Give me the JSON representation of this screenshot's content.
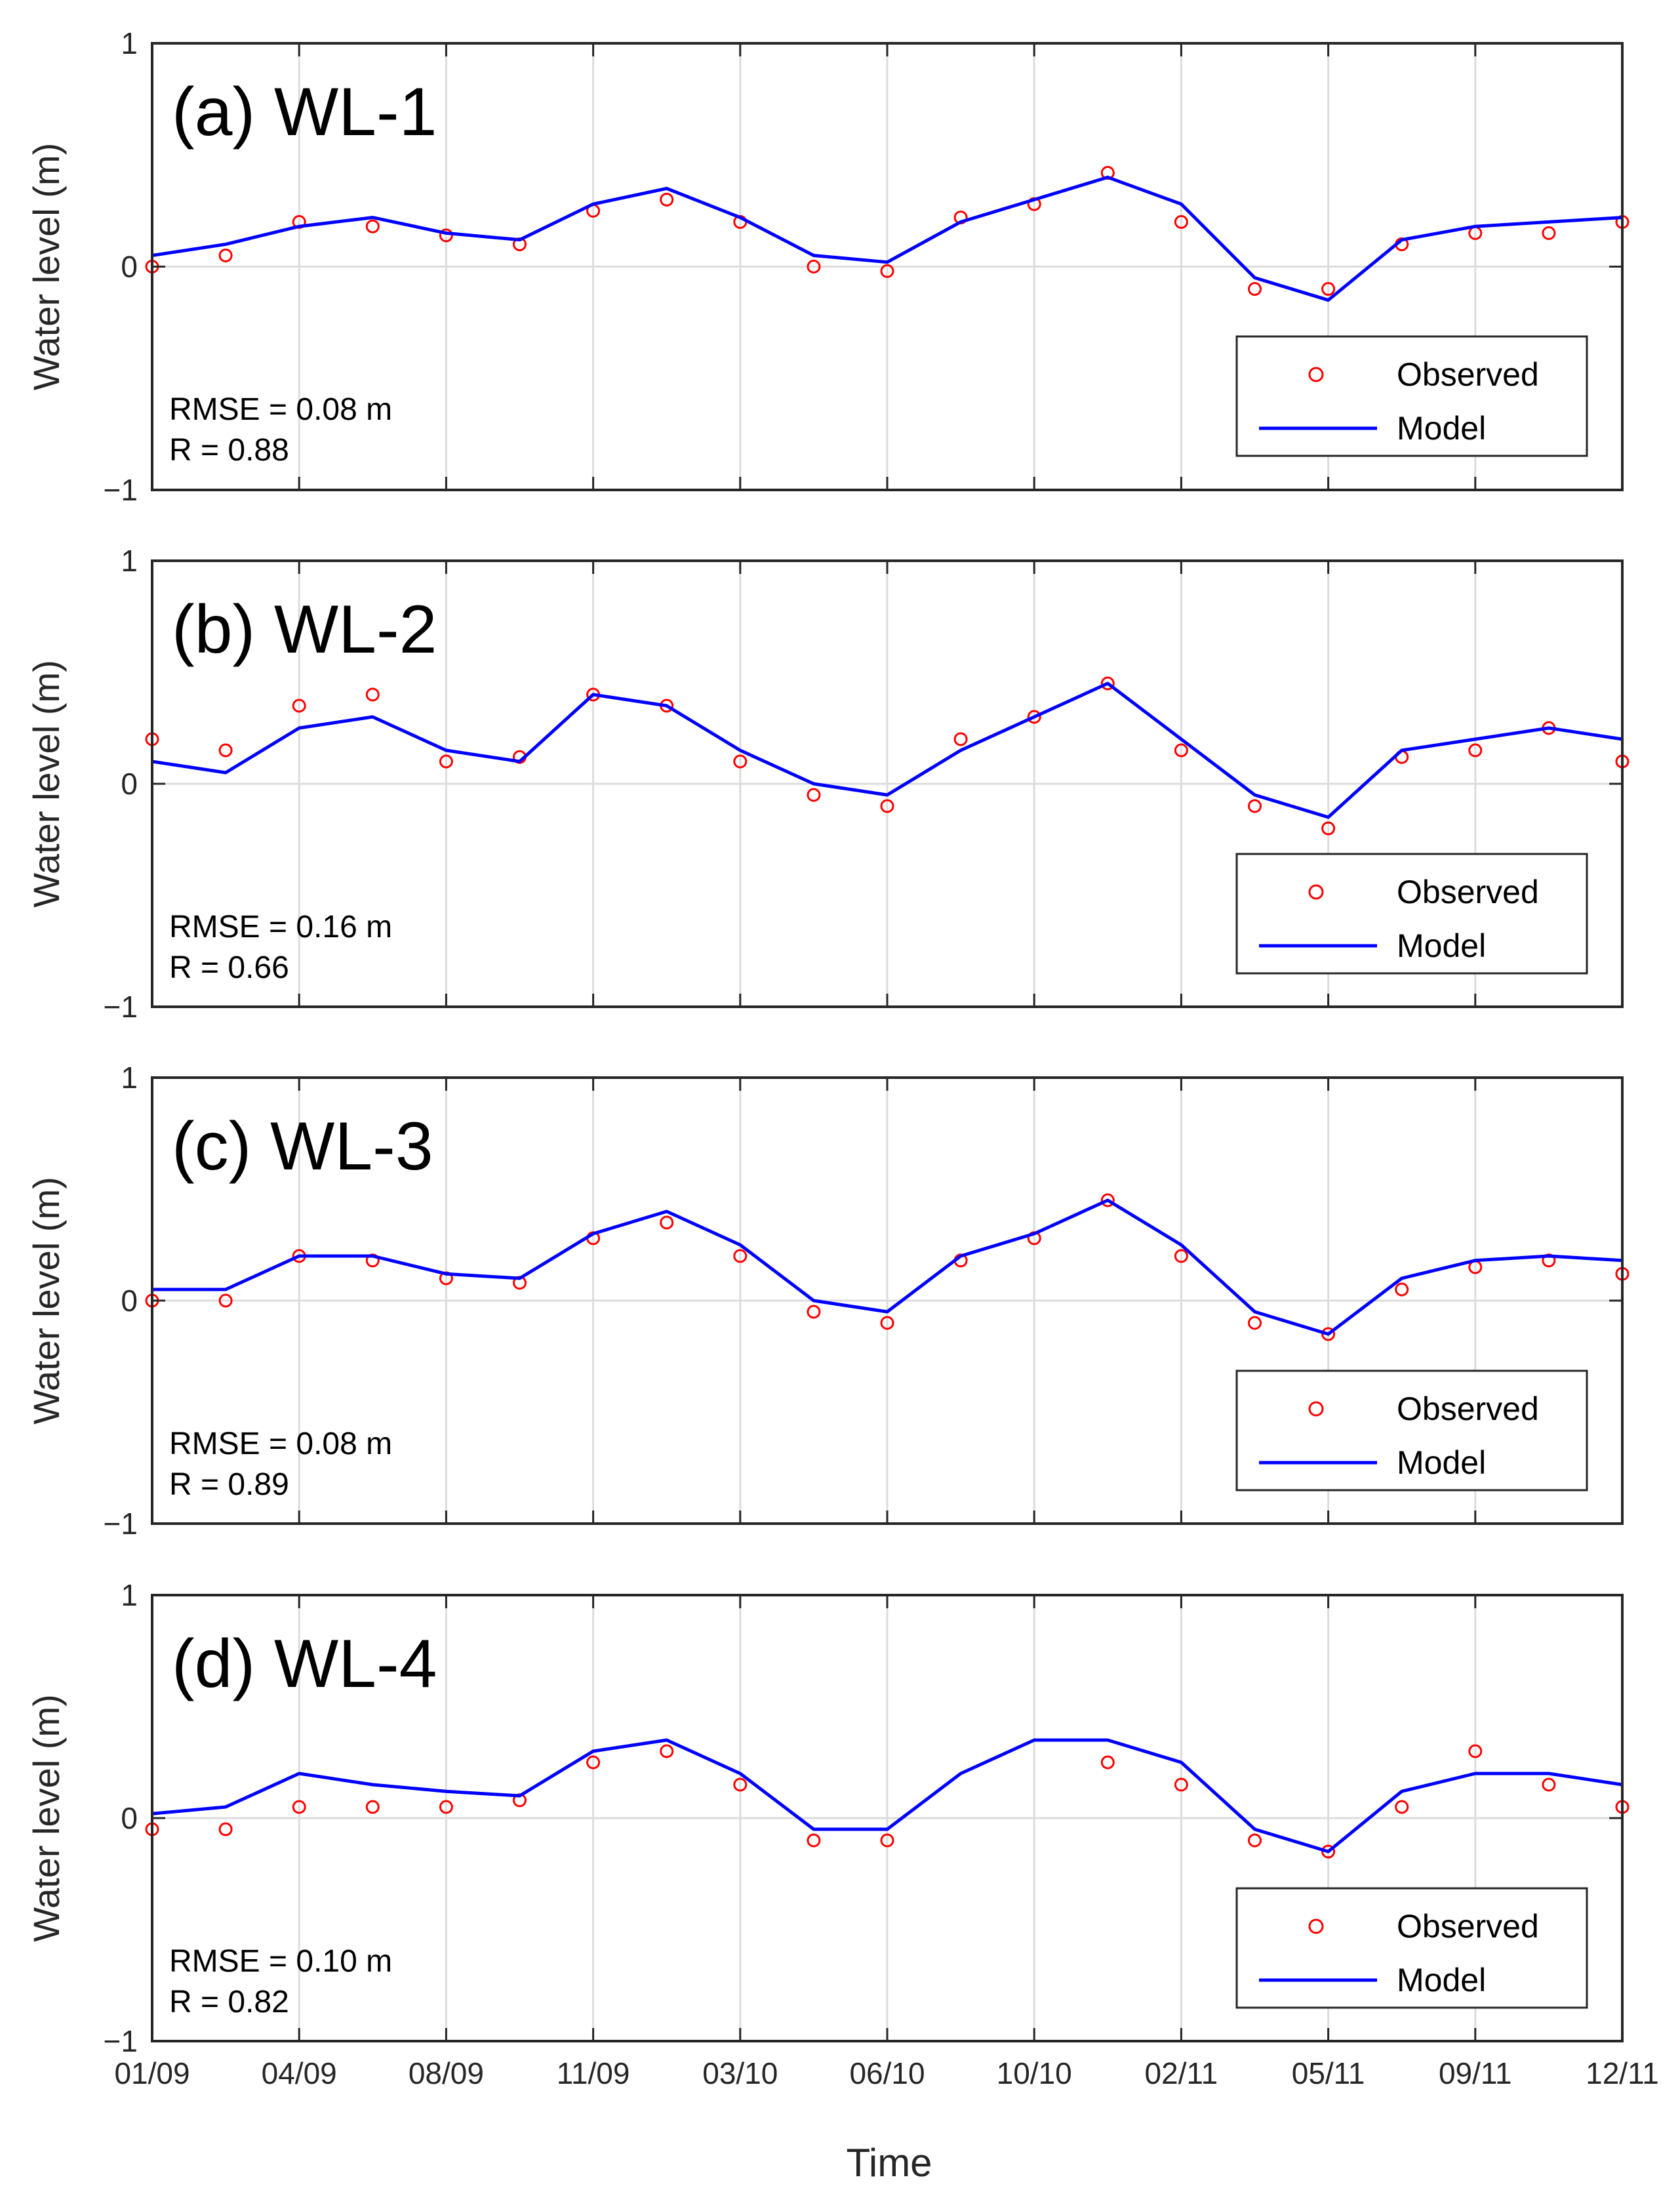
{
  "chart_data": [
    {
      "type": "line",
      "panel_title": "(a) WL-1",
      "ylabel": "Water level (m)",
      "xlabel": "",
      "ylim": [
        -1,
        1
      ],
      "y_ticks": [
        "1",
        "0",
        "−1"
      ],
      "x_tick_labels": [
        "01/09",
        "04/09",
        "08/09",
        "11/09",
        "03/10",
        "06/10",
        "10/10",
        "02/11",
        "05/11",
        "09/11",
        "12/11"
      ],
      "grid": true,
      "stats": [
        "RMSE = 0.08 m",
        "R = 0.88"
      ],
      "legend": {
        "position": "bottom-right",
        "entries": [
          "Observed",
          "Model"
        ]
      },
      "colors": {
        "observed": "#ff0000",
        "model": "#0000ff"
      },
      "x": [
        0,
        0.5,
        1,
        1.5,
        2,
        2.5,
        3,
        3.5,
        4,
        4.5,
        5,
        5.5,
        6,
        6.5,
        7,
        7.5,
        8,
        8.5,
        9,
        9.5,
        10
      ],
      "series": [
        {
          "name": "Model",
          "values": [
            0.05,
            0.1,
            0.18,
            0.22,
            0.15,
            0.12,
            0.28,
            0.35,
            0.22,
            0.05,
            0.02,
            0.2,
            0.3,
            0.4,
            0.28,
            -0.05,
            -0.15,
            0.12,
            0.18,
            0.2,
            0.22
          ]
        },
        {
          "name": "Observed",
          "values": [
            0.0,
            0.05,
            0.2,
            0.18,
            0.14,
            0.1,
            0.25,
            0.3,
            0.2,
            0.0,
            -0.02,
            0.22,
            0.28,
            0.42,
            0.2,
            -0.1,
            -0.1,
            0.1,
            0.15,
            0.15,
            0.2
          ]
        }
      ]
    },
    {
      "type": "line",
      "panel_title": "(b) WL-2",
      "ylabel": "Water level (m)",
      "xlabel": "",
      "ylim": [
        -1,
        1
      ],
      "y_ticks": [
        "1",
        "0",
        "−1"
      ],
      "x_tick_labels": [
        "01/09",
        "04/09",
        "08/09",
        "11/09",
        "03/10",
        "06/10",
        "10/10",
        "02/11",
        "05/11",
        "09/11",
        "12/11"
      ],
      "grid": true,
      "stats": [
        "RMSE = 0.16 m",
        "R = 0.66"
      ],
      "legend": {
        "position": "bottom-right",
        "entries": [
          "Observed",
          "Model"
        ]
      },
      "colors": {
        "observed": "#ff0000",
        "model": "#0000ff"
      },
      "x": [
        0,
        0.5,
        1,
        1.5,
        2,
        2.5,
        3,
        3.5,
        4,
        4.5,
        5,
        5.5,
        6,
        6.5,
        7,
        7.5,
        8,
        8.5,
        9,
        9.5,
        10
      ],
      "series": [
        {
          "name": "Model",
          "values": [
            0.1,
            0.05,
            0.25,
            0.3,
            0.15,
            0.1,
            0.4,
            0.35,
            0.15,
            0.0,
            -0.05,
            0.15,
            0.3,
            0.45,
            0.2,
            -0.05,
            -0.15,
            0.15,
            0.2,
            0.25,
            0.2
          ]
        },
        {
          "name": "Observed",
          "values": [
            0.2,
            0.15,
            0.35,
            0.4,
            0.1,
            0.12,
            0.4,
            0.35,
            0.1,
            -0.05,
            -0.1,
            0.2,
            0.3,
            0.45,
            0.15,
            -0.1,
            -0.2,
            0.12,
            0.15,
            0.25,
            0.1
          ]
        }
      ]
    },
    {
      "type": "line",
      "panel_title": "(c) WL-3",
      "ylabel": "Water level (m)",
      "xlabel": "",
      "ylim": [
        -1,
        1
      ],
      "y_ticks": [
        "1",
        "0",
        "−1"
      ],
      "x_tick_labels": [
        "01/09",
        "04/09",
        "08/09",
        "11/09",
        "03/10",
        "06/10",
        "10/10",
        "02/11",
        "05/11",
        "09/11",
        "12/11"
      ],
      "grid": true,
      "stats": [
        "RMSE = 0.08 m",
        "R = 0.89"
      ],
      "legend": {
        "position": "bottom-right",
        "entries": [
          "Observed",
          "Model"
        ]
      },
      "colors": {
        "observed": "#ff0000",
        "model": "#0000ff"
      },
      "x": [
        0,
        0.5,
        1,
        1.5,
        2,
        2.5,
        3,
        3.5,
        4,
        4.5,
        5,
        5.5,
        6,
        6.5,
        7,
        7.5,
        8,
        8.5,
        9,
        9.5,
        10
      ],
      "series": [
        {
          "name": "Model",
          "values": [
            0.05,
            0.05,
            0.2,
            0.2,
            0.12,
            0.1,
            0.3,
            0.4,
            0.25,
            0.0,
            -0.05,
            0.2,
            0.3,
            0.45,
            0.25,
            -0.05,
            -0.15,
            0.1,
            0.18,
            0.2,
            0.18
          ]
        },
        {
          "name": "Observed",
          "values": [
            0.0,
            0.0,
            0.2,
            0.18,
            0.1,
            0.08,
            0.28,
            0.35,
            0.2,
            -0.05,
            -0.1,
            0.18,
            0.28,
            0.45,
            0.2,
            -0.1,
            -0.15,
            0.05,
            0.15,
            0.18,
            0.12
          ]
        }
      ]
    },
    {
      "type": "line",
      "panel_title": "(d) WL-4",
      "ylabel": "Water level (m)",
      "xlabel": "Time",
      "ylim": [
        -1,
        1
      ],
      "y_ticks": [
        "1",
        "0",
        "−1"
      ],
      "x_tick_labels": [
        "01/09",
        "04/09",
        "08/09",
        "11/09",
        "03/10",
        "06/10",
        "10/10",
        "02/11",
        "05/11",
        "09/11",
        "12/11"
      ],
      "grid": true,
      "stats": [
        "RMSE = 0.10 m",
        "R = 0.82"
      ],
      "legend": {
        "position": "bottom-right",
        "entries": [
          "Observed",
          "Model"
        ]
      },
      "colors": {
        "observed": "#ff0000",
        "model": "#0000ff"
      },
      "x": [
        0,
        0.5,
        1,
        1.5,
        2,
        2.5,
        3,
        3.5,
        4,
        4.5,
        5,
        5.5,
        6,
        6.5,
        7,
        7.5,
        8,
        8.5,
        9,
        9.5,
        10
      ],
      "series": [
        {
          "name": "Model",
          "values": [
            0.02,
            0.05,
            0.2,
            0.15,
            0.12,
            0.1,
            0.3,
            0.35,
            0.2,
            -0.05,
            -0.05,
            0.2,
            0.35,
            0.35,
            0.25,
            -0.05,
            -0.15,
            0.12,
            0.2,
            0.2,
            0.15
          ]
        },
        {
          "name": "Observed",
          "values": [
            -0.05,
            -0.05,
            0.05,
            0.05,
            0.05,
            0.08,
            0.25,
            0.3,
            0.15,
            -0.1,
            -0.1,
            null,
            null,
            0.25,
            0.15,
            -0.1,
            -0.15,
            0.05,
            0.3,
            0.15,
            0.05
          ]
        }
      ]
    }
  ]
}
